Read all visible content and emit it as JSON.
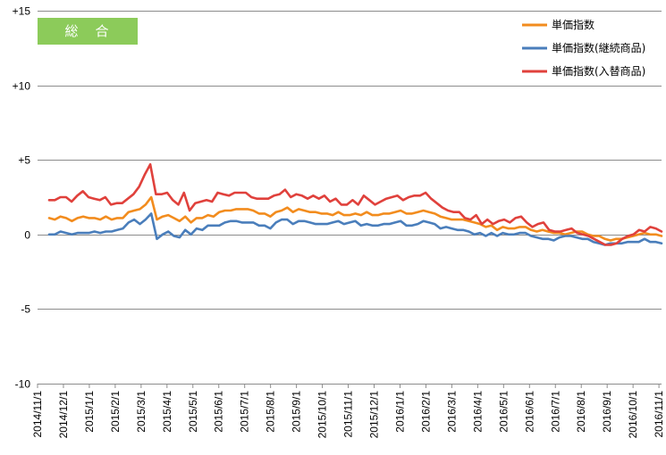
{
  "badge": {
    "text": "総　合",
    "color": "#8CCB5A"
  },
  "chart_data": {
    "type": "line",
    "title": "",
    "xlabel": "",
    "ylabel": "",
    "ylim": [
      -10,
      15
    ],
    "y_ticks": [
      {
        "value": 15,
        "label": "+15"
      },
      {
        "value": 10,
        "label": "+10"
      },
      {
        "value": 5,
        "label": "+5"
      },
      {
        "value": 0,
        "label": "0"
      },
      {
        "value": -5,
        "label": "-5"
      },
      {
        "value": -10,
        "label": "-10"
      }
    ],
    "grid": "horizontal",
    "legend_position": "top-right",
    "x_tick_labels": [
      "2014/11/1",
      "2014/12/1",
      "2015/1/1",
      "2015/2/1",
      "2015/3/1",
      "2015/4/1",
      "2015/5/1",
      "2015/6/1",
      "2015/7/1",
      "2015/8/1",
      "2015/9/1",
      "2015/10/1",
      "2015/11/1",
      "2015/12/1",
      "2016/1/1",
      "2016/2/1",
      "2016/3/1",
      "2016/4/1",
      "2016/5/1",
      "2016/6/1",
      "2016/7/1",
      "2016/8/1",
      "2016/9/1",
      "2016/10/1",
      "2016/11/1"
    ],
    "series": [
      {
        "name": "単価指数",
        "color": "#F28C1E",
        "values": [
          1.1,
          1.0,
          1.2,
          1.1,
          0.9,
          1.1,
          1.2,
          1.1,
          1.1,
          1.0,
          1.2,
          1.0,
          1.1,
          1.1,
          1.5,
          1.6,
          1.7,
          2.0,
          2.5,
          1.0,
          1.2,
          1.3,
          1.1,
          0.9,
          1.2,
          0.8,
          1.1,
          1.1,
          1.3,
          1.2,
          1.5,
          1.6,
          1.6,
          1.7,
          1.7,
          1.7,
          1.6,
          1.4,
          1.4,
          1.2,
          1.5,
          1.6,
          1.8,
          1.5,
          1.7,
          1.6,
          1.5,
          1.5,
          1.4,
          1.4,
          1.3,
          1.5,
          1.3,
          1.3,
          1.4,
          1.3,
          1.5,
          1.3,
          1.3,
          1.4,
          1.4,
          1.5,
          1.6,
          1.4,
          1.4,
          1.5,
          1.6,
          1.5,
          1.4,
          1.2,
          1.1,
          1.0,
          1.0,
          1.0,
          0.9,
          0.8,
          0.7,
          0.5,
          0.6,
          0.3,
          0.5,
          0.4,
          0.4,
          0.5,
          0.5,
          0.3,
          0.2,
          0.3,
          0.2,
          0.1,
          0.1,
          0.0,
          0.1,
          0.2,
          0.2,
          0.0,
          -0.1,
          -0.1,
          -0.3,
          -0.4,
          -0.3,
          -0.3,
          -0.2,
          -0.1,
          0.0,
          0.1,
          0.0,
          0.0,
          -0.1
        ]
      },
      {
        "name": "単価指数(継続商品)",
        "color": "#4A7EBB",
        "values": [
          0.0,
          0.0,
          0.2,
          0.1,
          0.0,
          0.1,
          0.1,
          0.1,
          0.2,
          0.1,
          0.2,
          0.2,
          0.3,
          0.4,
          0.8,
          1.0,
          0.7,
          1.0,
          1.4,
          -0.3,
          0.0,
          0.2,
          -0.1,
          -0.2,
          0.3,
          0.0,
          0.4,
          0.3,
          0.6,
          0.6,
          0.6,
          0.8,
          0.9,
          0.9,
          0.8,
          0.8,
          0.8,
          0.6,
          0.6,
          0.4,
          0.8,
          1.0,
          1.0,
          0.7,
          0.9,
          0.9,
          0.8,
          0.7,
          0.7,
          0.7,
          0.8,
          0.9,
          0.7,
          0.8,
          0.9,
          0.6,
          0.7,
          0.6,
          0.6,
          0.7,
          0.7,
          0.8,
          0.9,
          0.6,
          0.6,
          0.7,
          0.9,
          0.8,
          0.7,
          0.4,
          0.5,
          0.4,
          0.3,
          0.3,
          0.2,
          0.0,
          0.1,
          -0.1,
          0.1,
          -0.1,
          0.1,
          0.0,
          0.0,
          0.1,
          0.1,
          -0.1,
          -0.2,
          -0.3,
          -0.3,
          -0.4,
          -0.2,
          -0.1,
          -0.1,
          -0.2,
          -0.3,
          -0.3,
          -0.5,
          -0.6,
          -0.7,
          -0.6,
          -0.6,
          -0.6,
          -0.5,
          -0.5,
          -0.5,
          -0.3,
          -0.5,
          -0.5,
          -0.6
        ]
      },
      {
        "name": "単価指数(入替商品)",
        "color": "#E0413C",
        "values": [
          2.3,
          2.3,
          2.5,
          2.5,
          2.2,
          2.6,
          2.9,
          2.5,
          2.4,
          2.3,
          2.5,
          2.0,
          2.1,
          2.1,
          2.4,
          2.7,
          3.2,
          4.0,
          4.7,
          2.7,
          2.7,
          2.8,
          2.3,
          2.0,
          2.8,
          1.6,
          2.1,
          2.2,
          2.3,
          2.2,
          2.8,
          2.7,
          2.6,
          2.8,
          2.8,
          2.8,
          2.5,
          2.4,
          2.4,
          2.4,
          2.6,
          2.7,
          3.0,
          2.5,
          2.7,
          2.6,
          2.4,
          2.6,
          2.4,
          2.6,
          2.2,
          2.4,
          2.0,
          2.0,
          2.3,
          2.0,
          2.6,
          2.3,
          2.0,
          2.2,
          2.4,
          2.5,
          2.6,
          2.3,
          2.5,
          2.6,
          2.6,
          2.8,
          2.4,
          2.1,
          1.8,
          1.6,
          1.5,
          1.5,
          1.1,
          1.0,
          1.3,
          0.7,
          1.0,
          0.7,
          0.9,
          1.0,
          0.8,
          1.1,
          1.2,
          0.8,
          0.5,
          0.7,
          0.8,
          0.3,
          0.2,
          0.2,
          0.3,
          0.4,
          0.1,
          0.0,
          -0.1,
          -0.3,
          -0.5,
          -0.7,
          -0.7,
          -0.6,
          -0.3,
          -0.1,
          0.0,
          0.3,
          0.2,
          0.5,
          0.4,
          0.2
        ]
      }
    ]
  }
}
